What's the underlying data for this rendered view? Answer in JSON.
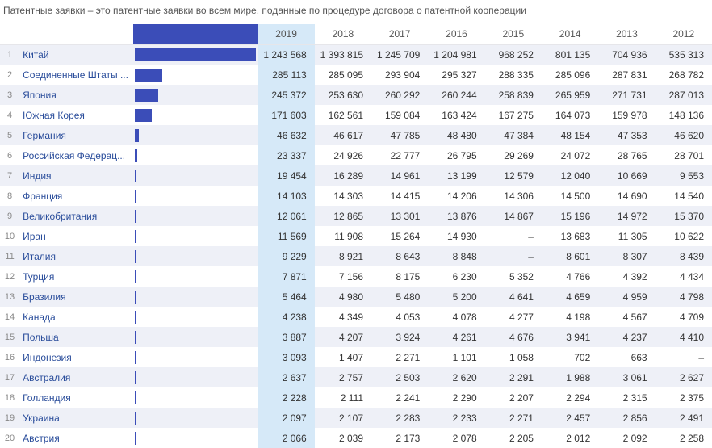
{
  "title": "Патентные заявки – это патентные заявки во всем мире, поданные по процедуре договора о патентной кооперации",
  "years": [
    "2019",
    "2018",
    "2017",
    "2016",
    "2015",
    "2014",
    "2013",
    "2012"
  ],
  "highlight_year_index": 0,
  "bar_color": "#3b4db8",
  "row_colors": {
    "odd": "#eef0f7",
    "even": "#ffffff"
  },
  "highlight_color": "#d6e9f8",
  "country_color": "#2a4d9b",
  "max_value": 1243568,
  "rows": [
    {
      "rank": 1,
      "country": "Китай",
      "values": [
        "1 243 568",
        "1 393 815",
        "1 245 709",
        "1 204 981",
        "968 252",
        "801 135",
        "704 936",
        "535 313"
      ]
    },
    {
      "rank": 2,
      "country": "Соединенные Штаты ...",
      "values": [
        "285 113",
        "285 095",
        "293 904",
        "295 327",
        "288 335",
        "285 096",
        "287 831",
        "268 782"
      ]
    },
    {
      "rank": 3,
      "country": "Япония",
      "values": [
        "245 372",
        "253 630",
        "260 292",
        "260 244",
        "258 839",
        "265 959",
        "271 731",
        "287 013"
      ]
    },
    {
      "rank": 4,
      "country": "Южная Корея",
      "values": [
        "171 603",
        "162 561",
        "159 084",
        "163 424",
        "167 275",
        "164 073",
        "159 978",
        "148 136"
      ]
    },
    {
      "rank": 5,
      "country": "Германия",
      "values": [
        "46 632",
        "46 617",
        "47 785",
        "48 480",
        "47 384",
        "48 154",
        "47 353",
        "46 620"
      ]
    },
    {
      "rank": 6,
      "country": "Российская Федерац...",
      "values": [
        "23 337",
        "24 926",
        "22 777",
        "26 795",
        "29 269",
        "24 072",
        "28 765",
        "28 701"
      ]
    },
    {
      "rank": 7,
      "country": "Индия",
      "values": [
        "19 454",
        "16 289",
        "14 961",
        "13 199",
        "12 579",
        "12 040",
        "10 669",
        "9 553"
      ]
    },
    {
      "rank": 8,
      "country": "Франция",
      "values": [
        "14 103",
        "14 303",
        "14 415",
        "14 206",
        "14 306",
        "14 500",
        "14 690",
        "14 540"
      ]
    },
    {
      "rank": 9,
      "country": "Великобритания",
      "values": [
        "12 061",
        "12 865",
        "13 301",
        "13 876",
        "14 867",
        "15 196",
        "14 972",
        "15 370"
      ]
    },
    {
      "rank": 10,
      "country": "Иран",
      "values": [
        "11 569",
        "11 908",
        "15 264",
        "14 930",
        "–",
        "13 683",
        "11 305",
        "10 622"
      ]
    },
    {
      "rank": 11,
      "country": "Италия",
      "values": [
        "9 229",
        "8 921",
        "8 643",
        "8 848",
        "–",
        "8 601",
        "8 307",
        "8 439"
      ]
    },
    {
      "rank": 12,
      "country": "Турция",
      "values": [
        "7 871",
        "7 156",
        "8 175",
        "6 230",
        "5 352",
        "4 766",
        "4 392",
        "4 434"
      ]
    },
    {
      "rank": 13,
      "country": "Бразилия",
      "values": [
        "5 464",
        "4 980",
        "5 480",
        "5 200",
        "4 641",
        "4 659",
        "4 959",
        "4 798"
      ]
    },
    {
      "rank": 14,
      "country": "Канада",
      "values": [
        "4 238",
        "4 349",
        "4 053",
        "4 078",
        "4 277",
        "4 198",
        "4 567",
        "4 709"
      ]
    },
    {
      "rank": 15,
      "country": "Польша",
      "values": [
        "3 887",
        "4 207",
        "3 924",
        "4 261",
        "4 676",
        "3 941",
        "4 237",
        "4 410"
      ]
    },
    {
      "rank": 16,
      "country": "Индонезия",
      "values": [
        "3 093",
        "1 407",
        "2 271",
        "1 101",
        "1 058",
        "702",
        "663",
        "–"
      ]
    },
    {
      "rank": 17,
      "country": "Австралия",
      "values": [
        "2 637",
        "2 757",
        "2 503",
        "2 620",
        "2 291",
        "1 988",
        "3 061",
        "2 627"
      ]
    },
    {
      "rank": 18,
      "country": "Голландия",
      "values": [
        "2 228",
        "2 111",
        "2 241",
        "2 290",
        "2 207",
        "2 294",
        "2 315",
        "2 375"
      ]
    },
    {
      "rank": 19,
      "country": "Украина",
      "values": [
        "2 097",
        "2 107",
        "2 283",
        "2 233",
        "2 271",
        "2 457",
        "2 856",
        "2 491"
      ]
    },
    {
      "rank": 20,
      "country": "Австрия",
      "values": [
        "2 066",
        "2 039",
        "2 173",
        "2 078",
        "2 205",
        "2 012",
        "2 092",
        "2 258"
      ]
    }
  ]
}
